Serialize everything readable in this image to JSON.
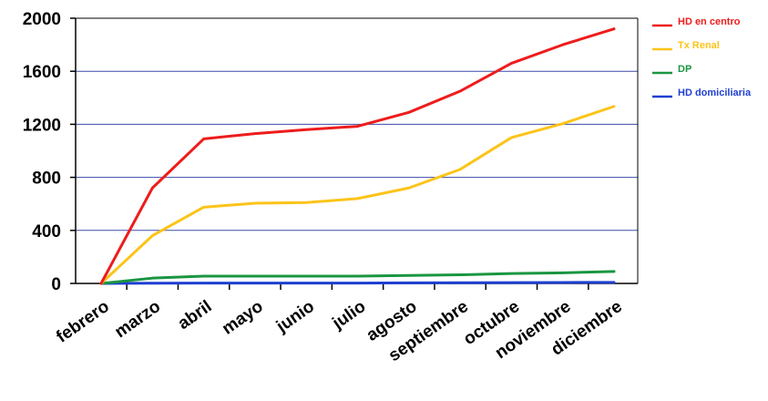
{
  "chart_data": {
    "type": "line",
    "title": "",
    "xlabel": "",
    "ylabel": "",
    "ylim": [
      0,
      2000
    ],
    "yticks": [
      0,
      400,
      800,
      1200,
      1600,
      2000
    ],
    "grid": "horizontal",
    "legend_position": "right",
    "categories": [
      "febrero",
      "marzo",
      "abril",
      "mayo",
      "junio",
      "julio",
      "agosto",
      "septiembre",
      "octubre",
      "noviembre",
      "diciembre"
    ],
    "series": [
      {
        "name": "HD en centro",
        "color": "#ee1c1c",
        "values": [
          0,
          720,
          1090,
          1130,
          1160,
          1185,
          1290,
          1450,
          1660,
          1800,
          1920
        ]
      },
      {
        "name": "Tx Renal",
        "color": "#fcc419",
        "values": [
          0,
          360,
          575,
          605,
          610,
          640,
          720,
          860,
          1100,
          1205,
          1335
        ]
      },
      {
        "name": "DP",
        "color": "#1a9641",
        "values": [
          0,
          40,
          55,
          55,
          55,
          55,
          60,
          65,
          75,
          80,
          90
        ]
      },
      {
        "name": "HD domiciliaria",
        "color": "#1f3fd1",
        "values": [
          0,
          2,
          3,
          3,
          3,
          3,
          4,
          5,
          6,
          7,
          8
        ]
      }
    ]
  }
}
